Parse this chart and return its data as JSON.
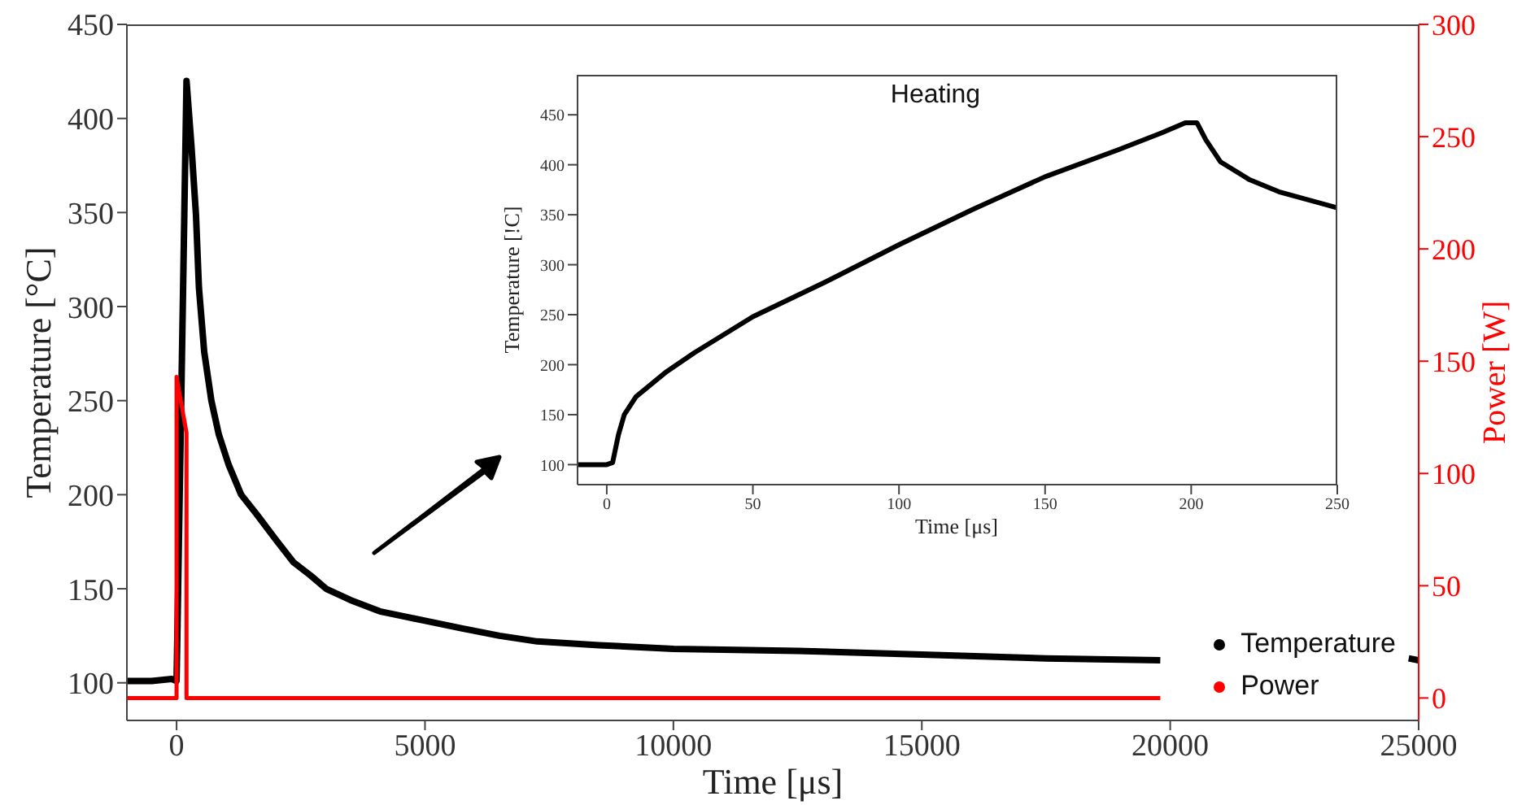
{
  "chart_data": [
    {
      "type": "line",
      "xlabel": "Time [μs]",
      "ylabel": "Temperature [°C]",
      "y2label": "Power [W]",
      "xlim": [
        -1000,
        25000
      ],
      "xticks": [
        0,
        5000,
        10000,
        15000,
        20000,
        25000
      ],
      "ylim": [
        80,
        450
      ],
      "yticks": [
        100,
        150,
        200,
        250,
        300,
        350,
        400,
        450
      ],
      "y2lim": [
        -10,
        300
      ],
      "y2ticks": [
        0,
        50,
        100,
        150,
        200,
        250,
        300
      ],
      "legend": "bottom right",
      "series": [
        {
          "name": "Temperature",
          "color": "#000000",
          "x": [
            -1000,
            -500,
            -100,
            0,
            100,
            200,
            300,
            390,
            450,
            556,
            700,
            850,
            1047,
            1300,
            1600,
            2000,
            2356,
            2700,
            3010,
            3500,
            4090,
            5000,
            5730,
            6500,
            7260,
            8500,
            10000,
            12500,
            15000,
            17500,
            19800,
            22000,
            24800,
            25000
          ],
          "values": [
            101,
            101,
            102,
            101,
            260,
            420,
            385,
            349,
            310,
            276,
            250,
            232,
            216,
            200,
            190,
            176,
            164,
            157,
            150,
            144,
            138,
            133,
            129,
            125,
            122,
            120,
            118,
            117,
            115,
            113,
            112,
            null,
            113,
            112
          ]
        },
        {
          "name": "Power",
          "color": "#ff0000",
          "axis": "y2",
          "x": [
            -1000,
            0,
            0,
            200,
            200,
            19800
          ],
          "values": [
            0,
            0,
            143,
            118,
            0,
            0
          ]
        }
      ]
    },
    {
      "type": "line",
      "title": "Heating",
      "xlabel": "Time [μs]",
      "ylabel": "Temperature [!C]",
      "xlim": [
        -10,
        250
      ],
      "xticks": [
        0,
        50,
        100,
        150,
        200,
        250
      ],
      "ylim": [
        80,
        490
      ],
      "yticks": [
        100,
        150,
        200,
        250,
        300,
        350,
        400,
        450
      ],
      "series": [
        {
          "color": "#000000",
          "x": [
            -10,
            0,
            2,
            4,
            6,
            10,
            20,
            30,
            50,
            75,
            100,
            125,
            150,
            175,
            190,
            198,
            202,
            205,
            210,
            220,
            230,
            250
          ],
          "values": [
            100,
            100,
            102,
            130,
            150,
            168,
            192,
            212,
            248,
            283,
            320,
            355,
            388,
            415,
            432,
            442,
            442,
            425,
            403,
            385,
            373,
            357
          ]
        }
      ]
    }
  ]
}
